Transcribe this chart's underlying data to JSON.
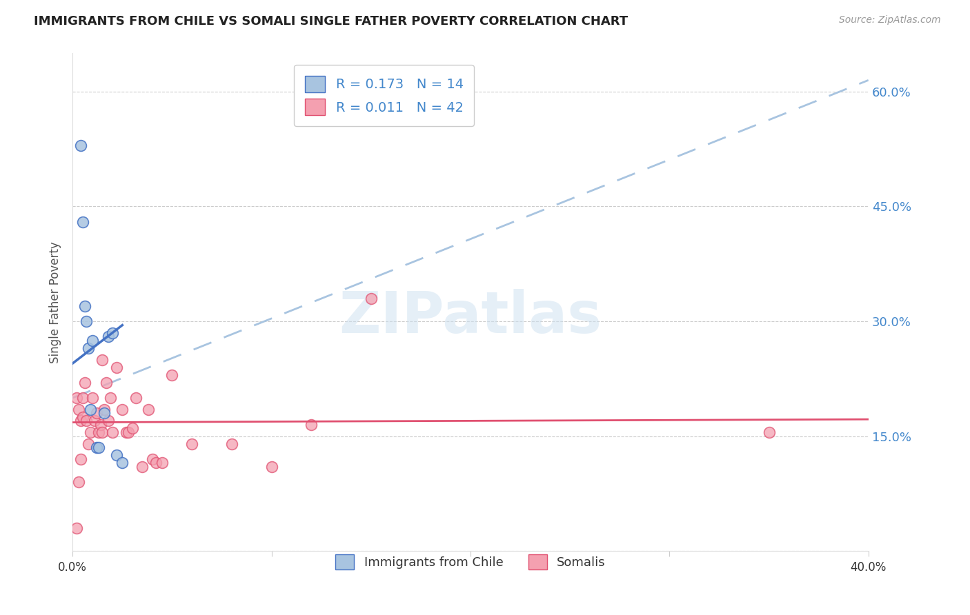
{
  "title": "IMMIGRANTS FROM CHILE VS SOMALI SINGLE FATHER POVERTY CORRELATION CHART",
  "source": "Source: ZipAtlas.com",
  "ylabel": "Single Father Poverty",
  "xmin": 0.0,
  "xmax": 0.4,
  "ymin": 0.0,
  "ymax": 0.65,
  "yticks": [
    0.0,
    0.15,
    0.3,
    0.45,
    0.6
  ],
  "ytick_labels": [
    "",
    "15.0%",
    "30.0%",
    "45.0%",
    "60.0%"
  ],
  "xticks": [
    0.0,
    0.1,
    0.2,
    0.3,
    0.4
  ],
  "xtick_labels": [
    "0.0%",
    "",
    "",
    "",
    "40.0%"
  ],
  "grid_color": "#cccccc",
  "background_color": "#ffffff",
  "chile_color": "#a8c4e0",
  "chile_line_color": "#4472c4",
  "somali_color": "#f4a0b0",
  "somali_line_color": "#e05070",
  "dashed_line_color": "#a8c4e0",
  "right_axis_color": "#4488cc",
  "legend_r_chile": "R = 0.173",
  "legend_n_chile": "N = 14",
  "legend_r_somali": "R = 0.011",
  "legend_n_somali": "N = 42",
  "legend_label_chile": "Immigrants from Chile",
  "legend_label_somali": "Somalis",
  "watermark": "ZIPatlas",
  "chile_points_x": [
    0.004,
    0.005,
    0.006,
    0.007,
    0.008,
    0.009,
    0.01,
    0.012,
    0.013,
    0.016,
    0.018,
    0.02,
    0.022,
    0.025
  ],
  "chile_points_y": [
    0.53,
    0.43,
    0.32,
    0.3,
    0.265,
    0.185,
    0.275,
    0.135,
    0.135,
    0.18,
    0.28,
    0.285,
    0.125,
    0.115
  ],
  "somali_points_x": [
    0.002,
    0.003,
    0.004,
    0.005,
    0.005,
    0.006,
    0.007,
    0.008,
    0.009,
    0.01,
    0.011,
    0.012,
    0.013,
    0.014,
    0.015,
    0.015,
    0.016,
    0.017,
    0.018,
    0.019,
    0.02,
    0.022,
    0.025,
    0.027,
    0.028,
    0.03,
    0.032,
    0.035,
    0.038,
    0.04,
    0.042,
    0.045,
    0.05,
    0.06,
    0.08,
    0.1,
    0.12,
    0.15,
    0.002,
    0.35,
    0.003,
    0.004
  ],
  "somali_points_y": [
    0.2,
    0.185,
    0.17,
    0.175,
    0.2,
    0.22,
    0.17,
    0.14,
    0.155,
    0.2,
    0.17,
    0.18,
    0.155,
    0.165,
    0.155,
    0.25,
    0.185,
    0.22,
    0.17,
    0.2,
    0.155,
    0.24,
    0.185,
    0.155,
    0.155,
    0.16,
    0.2,
    0.11,
    0.185,
    0.12,
    0.115,
    0.115,
    0.23,
    0.14,
    0.14,
    0.11,
    0.165,
    0.33,
    0.03,
    0.155,
    0.09,
    0.12
  ],
  "chile_trend_x0": 0.0,
  "chile_trend_x1": 0.025,
  "chile_trend_y0": 0.245,
  "chile_trend_y1": 0.295,
  "somali_trend_x0": 0.0,
  "somali_trend_x1": 0.4,
  "somali_trend_y0": 0.168,
  "somali_trend_y1": 0.172,
  "dashed_trend_x0": 0.0,
  "dashed_trend_x1": 0.4,
  "dashed_trend_y0": 0.2,
  "dashed_trend_y1": 0.615
}
